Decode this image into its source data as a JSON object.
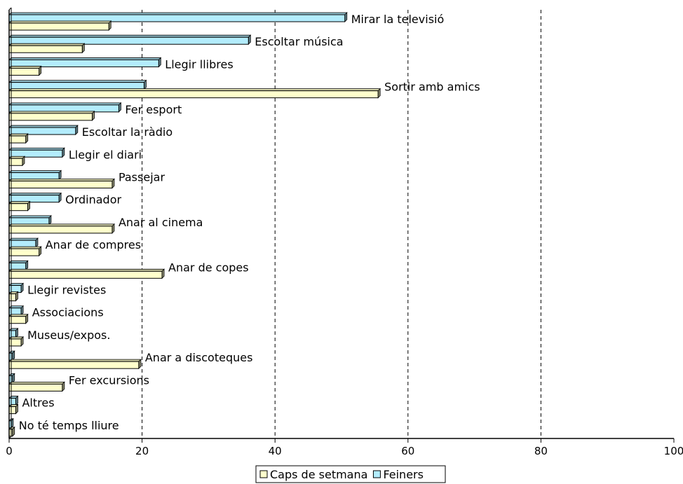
{
  "chart_data": {
    "type": "bar",
    "orientation": "horizontal",
    "categories": [
      "Mirar la televisió",
      "Escoltar música",
      "Llegir llibres",
      "Sortir amb amics",
      "Fer esport",
      "Escoltar la ràdio",
      "Llegir el diari",
      "Passejar",
      "Ordinador",
      "Anar al cinema",
      "Anar de compres",
      "Anar de copes",
      "Llegir revistes",
      "Associacions",
      "Museus/expos.",
      "Anar a discoteques",
      "Fer excursions",
      "Altres",
      "No té temps lliure"
    ],
    "series": [
      {
        "name": "Feiners",
        "color": "#b3ecfc",
        "values": [
          50.5,
          36.0,
          22.5,
          20.3,
          16.5,
          10.0,
          8.0,
          7.5,
          7.5,
          6.0,
          4.0,
          2.5,
          1.8,
          1.8,
          1.0,
          0.5,
          0.5,
          1.0,
          0.3
        ]
      },
      {
        "name": "Caps de setmana",
        "color": "#ffffcc",
        "values": [
          15.0,
          11.0,
          4.5,
          55.5,
          12.5,
          2.5,
          2.0,
          15.5,
          2.8,
          15.5,
          4.5,
          23.0,
          1.0,
          2.5,
          1.8,
          19.5,
          8.0,
          1.0,
          0.5
        ]
      }
    ],
    "xlim": [
      0,
      100
    ],
    "xticks": [
      0,
      20,
      40,
      60,
      80,
      100
    ],
    "grid": "vertical dashed",
    "legend": "bottom-center",
    "legend_order": [
      "Caps de setmana",
      "Feiners"
    ],
    "title": "",
    "xlabel": "",
    "ylabel": ""
  }
}
